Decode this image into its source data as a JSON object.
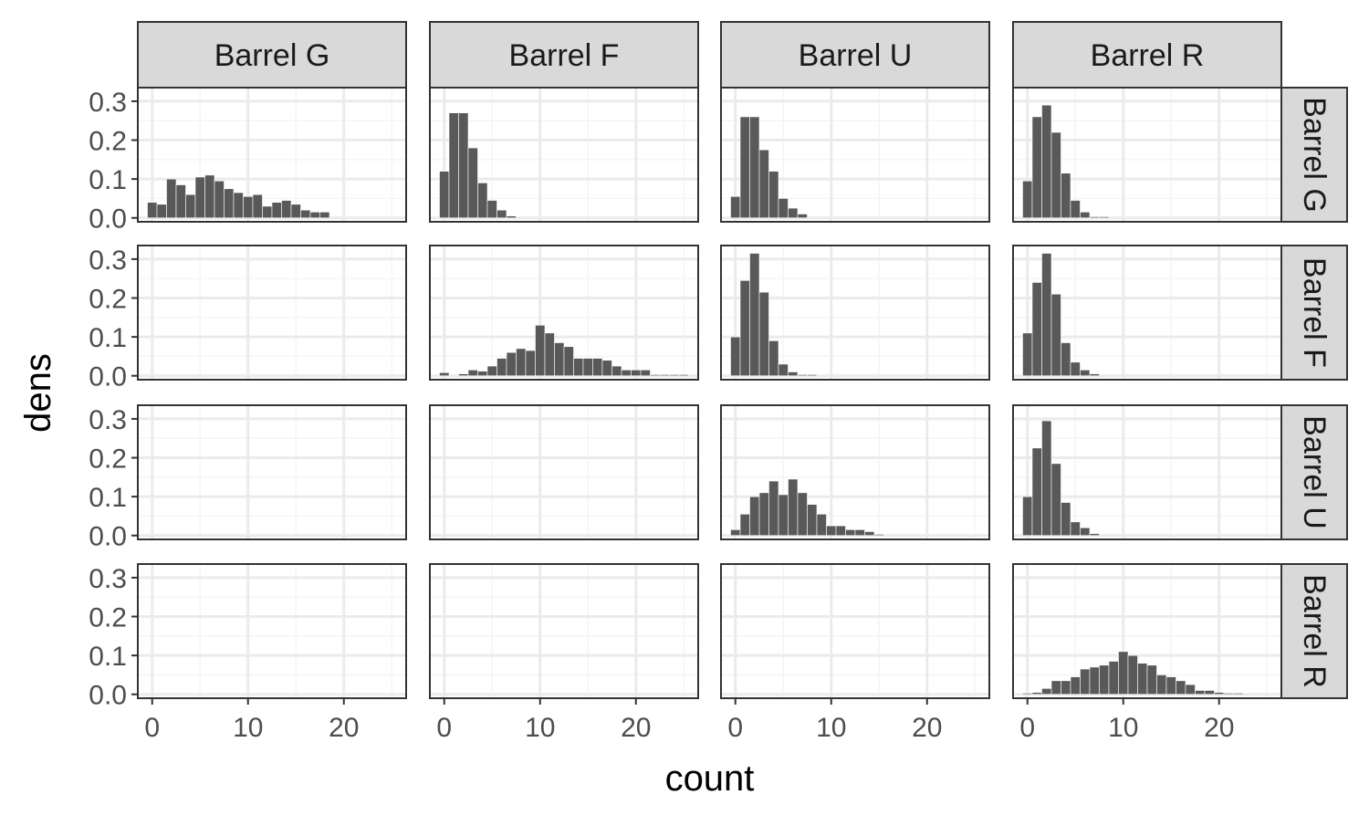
{
  "chart_data": {
    "type": "histogram-facet-grid",
    "title": "",
    "xlabel": "count",
    "ylabel": "dens",
    "column_strips": [
      "Barrel G",
      "Barrel F",
      "Barrel U",
      "Barrel R"
    ],
    "row_strips": [
      "Barrel G",
      "Barrel F",
      "Barrel U",
      "Barrel R"
    ],
    "xlim": [
      -1.5,
      26.5
    ],
    "ylim": [
      -0.01,
      0.335
    ],
    "x_ticks": [
      0,
      10,
      20
    ],
    "x_tick_labels": [
      "0",
      "10",
      "20"
    ],
    "y_ticks": [
      0.0,
      0.1,
      0.2,
      0.3
    ],
    "y_tick_labels": [
      "0.0",
      "0.1",
      "0.2",
      "0.3"
    ],
    "bin_width": 1,
    "grid": true,
    "panels": [
      {
        "row": "Barrel G",
        "col": "Barrel G",
        "x": [
          0,
          1,
          2,
          3,
          4,
          5,
          6,
          7,
          8,
          9,
          10,
          11,
          12,
          13,
          14,
          15,
          16,
          17,
          18
        ],
        "y": [
          0.04,
          0.035,
          0.1,
          0.085,
          0.06,
          0.105,
          0.11,
          0.095,
          0.075,
          0.065,
          0.055,
          0.06,
          0.03,
          0.04,
          0.045,
          0.035,
          0.02,
          0.015,
          0.015
        ]
      },
      {
        "row": "Barrel G",
        "col": "Barrel F",
        "x": [
          0,
          1,
          2,
          3,
          4,
          5,
          6,
          7
        ],
        "y": [
          0.12,
          0.27,
          0.27,
          0.18,
          0.09,
          0.045,
          0.02,
          0.005
        ]
      },
      {
        "row": "Barrel G",
        "col": "Barrel U",
        "x": [
          0,
          1,
          2,
          3,
          4,
          5,
          6,
          7
        ],
        "y": [
          0.055,
          0.26,
          0.26,
          0.175,
          0.12,
          0.05,
          0.025,
          0.01
        ]
      },
      {
        "row": "Barrel G",
        "col": "Barrel R",
        "x": [
          0,
          1,
          2,
          3,
          4,
          5,
          6,
          7,
          8
        ],
        "y": [
          0.095,
          0.26,
          0.29,
          0.22,
          0.115,
          0.045,
          0.015,
          0.003,
          0.003
        ]
      },
      {
        "row": "Barrel F",
        "col": "Barrel G",
        "x": [],
        "y": []
      },
      {
        "row": "Barrel F",
        "col": "Barrel F",
        "x": [
          0,
          2,
          3,
          4,
          5,
          6,
          7,
          8,
          9,
          10,
          11,
          12,
          13,
          14,
          15,
          16,
          17,
          18,
          19,
          20,
          21,
          22,
          23,
          24,
          25
        ],
        "y": [
          0.008,
          0.005,
          0.015,
          0.012,
          0.025,
          0.045,
          0.06,
          0.07,
          0.065,
          0.13,
          0.11,
          0.085,
          0.075,
          0.045,
          0.045,
          0.045,
          0.04,
          0.025,
          0.015,
          0.015,
          0.015,
          0.003,
          0.003,
          0.003,
          0.003
        ]
      },
      {
        "row": "Barrel F",
        "col": "Barrel U",
        "x": [
          0,
          1,
          2,
          3,
          4,
          5,
          6,
          7,
          8
        ],
        "y": [
          0.1,
          0.245,
          0.315,
          0.215,
          0.09,
          0.03,
          0.01,
          0.003,
          0.003
        ]
      },
      {
        "row": "Barrel F",
        "col": "Barrel R",
        "x": [
          0,
          1,
          2,
          3,
          4,
          5,
          6,
          7
        ],
        "y": [
          0.11,
          0.24,
          0.315,
          0.21,
          0.085,
          0.035,
          0.015,
          0.005
        ]
      },
      {
        "row": "Barrel U",
        "col": "Barrel G",
        "x": [],
        "y": []
      },
      {
        "row": "Barrel U",
        "col": "Barrel F",
        "x": [],
        "y": []
      },
      {
        "row": "Barrel U",
        "col": "Barrel U",
        "x": [
          0,
          1,
          2,
          3,
          4,
          5,
          6,
          7,
          8,
          9,
          10,
          11,
          12,
          13,
          14,
          15
        ],
        "y": [
          0.015,
          0.055,
          0.1,
          0.11,
          0.14,
          0.105,
          0.145,
          0.11,
          0.08,
          0.055,
          0.025,
          0.025,
          0.015,
          0.015,
          0.01,
          0.003
        ]
      },
      {
        "row": "Barrel U",
        "col": "Barrel R",
        "x": [
          0,
          1,
          2,
          3,
          4,
          5,
          6,
          7
        ],
        "y": [
          0.1,
          0.225,
          0.295,
          0.185,
          0.085,
          0.035,
          0.02,
          0.005
        ]
      },
      {
        "row": "Barrel R",
        "col": "Barrel G",
        "x": [],
        "y": []
      },
      {
        "row": "Barrel R",
        "col": "Barrel F",
        "x": [],
        "y": []
      },
      {
        "row": "Barrel R",
        "col": "Barrel U",
        "x": [],
        "y": []
      },
      {
        "row": "Barrel R",
        "col": "Barrel R",
        "x": [
          0,
          1,
          2,
          3,
          4,
          5,
          6,
          7,
          8,
          9,
          10,
          11,
          12,
          13,
          14,
          15,
          16,
          17,
          18,
          19,
          20,
          21,
          22
        ],
        "y": [
          0.003,
          0.005,
          0.015,
          0.035,
          0.035,
          0.045,
          0.065,
          0.07,
          0.075,
          0.085,
          0.11,
          0.1,
          0.08,
          0.075,
          0.05,
          0.045,
          0.035,
          0.025,
          0.01,
          0.01,
          0.005,
          0.003,
          0.003
        ]
      }
    ]
  },
  "colors": {
    "bar_fill": "#595959",
    "bar_edge": "#ffffff",
    "panel_border": "#333333",
    "strip_fill": "#d9d9d9",
    "grid_major": "#ebebeb",
    "grid_minor": "#f5f5f5",
    "tick_text": "#4d4d4d",
    "strip_text": "#1a1a1a",
    "axis_title": "#000000"
  }
}
